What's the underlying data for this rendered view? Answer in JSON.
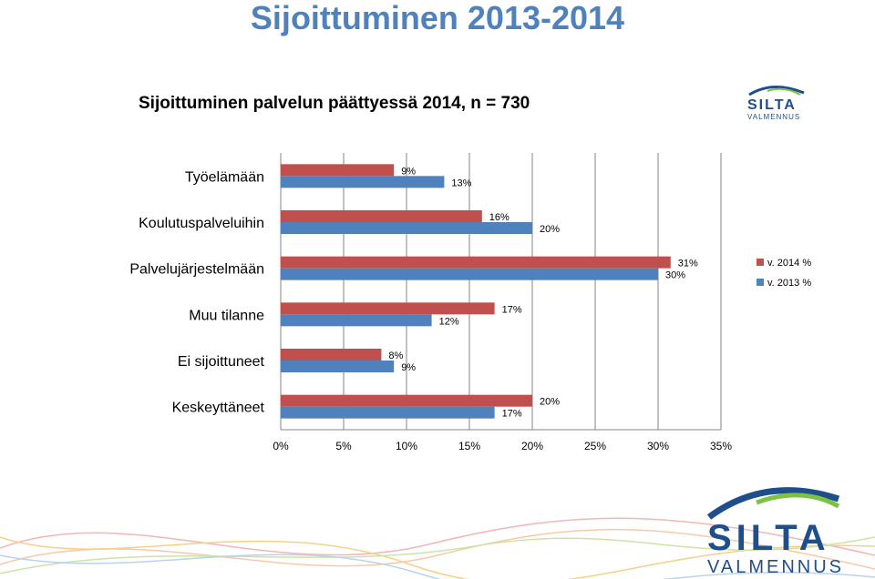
{
  "slide": {
    "title": "Sijoittuminen 2013-2014",
    "logo_text_top": "SILTA",
    "logo_text_bottom": "VALMENNUS"
  },
  "colors": {
    "series_2014": "#C0504D",
    "series_2013": "#4F81BD",
    "title": "#4F81BD",
    "logo_blue": "#1F4E8C",
    "logo_green": "#7DC242"
  },
  "chart_data": {
    "type": "bar",
    "orientation": "horizontal",
    "title": "Sijoittuminen palvelun päättyessä 2014, n = 730",
    "categories": [
      "Työelämään",
      "Koulutuspalveluihin",
      "Palvelujärjestelmään",
      "Muu tilanne",
      "Ei sijoittuneet",
      "Keskeyttäneet"
    ],
    "series": [
      {
        "name": "v. 2014 %",
        "values": [
          9,
          16,
          31,
          17,
          8,
          20
        ],
        "labels": [
          "9%",
          "16%",
          "31%",
          "17%",
          "8%",
          "20%"
        ]
      },
      {
        "name": "v. 2013 %",
        "values": [
          13,
          20,
          30,
          12,
          9,
          17
        ],
        "labels": [
          "13%",
          "20%",
          "30%",
          "12%",
          "9%",
          "17%"
        ]
      }
    ],
    "xlim": [
      0,
      35
    ],
    "xticks": [
      0,
      5,
      10,
      15,
      20,
      25,
      30,
      35
    ],
    "xtick_labels": [
      "0%",
      "5%",
      "10%",
      "15%",
      "20%",
      "25%",
      "30%",
      "35%"
    ],
    "grid": "vertical",
    "legend_position": "right"
  }
}
